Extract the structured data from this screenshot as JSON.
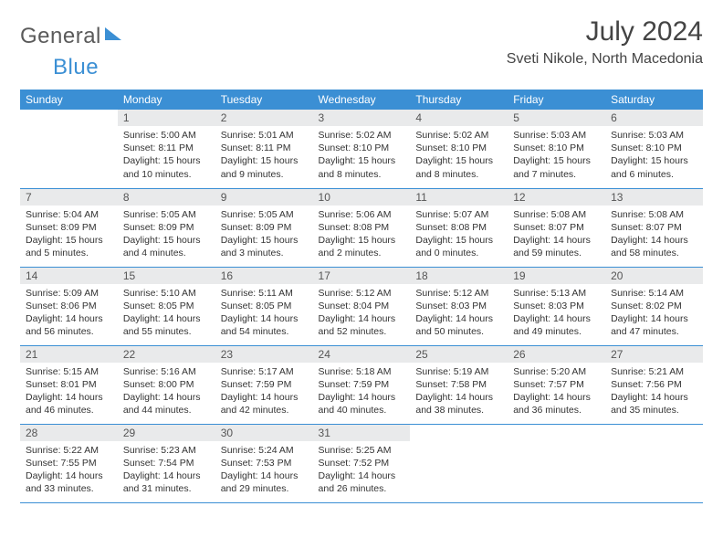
{
  "logo": {
    "text1": "General",
    "text2": "Blue"
  },
  "title": "July 2024",
  "location": "Sveti Nikole, North Macedonia",
  "colors": {
    "header_bg": "#3b8fd4",
    "header_fg": "#ffffff",
    "daynum_bg": "#e9eaeb",
    "rule": "#3b8fd4",
    "text": "#333333",
    "logo_gray": "#5a5a5a",
    "logo_blue": "#3b8fd4",
    "background": "#ffffff"
  },
  "weekdays": [
    "Sunday",
    "Monday",
    "Tuesday",
    "Wednesday",
    "Thursday",
    "Friday",
    "Saturday"
  ],
  "weeks": [
    [
      {
        "n": "",
        "sr": "",
        "ss": "",
        "dl": ""
      },
      {
        "n": "1",
        "sr": "Sunrise: 5:00 AM",
        "ss": "Sunset: 8:11 PM",
        "dl": "Daylight: 15 hours and 10 minutes."
      },
      {
        "n": "2",
        "sr": "Sunrise: 5:01 AM",
        "ss": "Sunset: 8:11 PM",
        "dl": "Daylight: 15 hours and 9 minutes."
      },
      {
        "n": "3",
        "sr": "Sunrise: 5:02 AM",
        "ss": "Sunset: 8:10 PM",
        "dl": "Daylight: 15 hours and 8 minutes."
      },
      {
        "n": "4",
        "sr": "Sunrise: 5:02 AM",
        "ss": "Sunset: 8:10 PM",
        "dl": "Daylight: 15 hours and 8 minutes."
      },
      {
        "n": "5",
        "sr": "Sunrise: 5:03 AM",
        "ss": "Sunset: 8:10 PM",
        "dl": "Daylight: 15 hours and 7 minutes."
      },
      {
        "n": "6",
        "sr": "Sunrise: 5:03 AM",
        "ss": "Sunset: 8:10 PM",
        "dl": "Daylight: 15 hours and 6 minutes."
      }
    ],
    [
      {
        "n": "7",
        "sr": "Sunrise: 5:04 AM",
        "ss": "Sunset: 8:09 PM",
        "dl": "Daylight: 15 hours and 5 minutes."
      },
      {
        "n": "8",
        "sr": "Sunrise: 5:05 AM",
        "ss": "Sunset: 8:09 PM",
        "dl": "Daylight: 15 hours and 4 minutes."
      },
      {
        "n": "9",
        "sr": "Sunrise: 5:05 AM",
        "ss": "Sunset: 8:09 PM",
        "dl": "Daylight: 15 hours and 3 minutes."
      },
      {
        "n": "10",
        "sr": "Sunrise: 5:06 AM",
        "ss": "Sunset: 8:08 PM",
        "dl": "Daylight: 15 hours and 2 minutes."
      },
      {
        "n": "11",
        "sr": "Sunrise: 5:07 AM",
        "ss": "Sunset: 8:08 PM",
        "dl": "Daylight: 15 hours and 0 minutes."
      },
      {
        "n": "12",
        "sr": "Sunrise: 5:08 AM",
        "ss": "Sunset: 8:07 PM",
        "dl": "Daylight: 14 hours and 59 minutes."
      },
      {
        "n": "13",
        "sr": "Sunrise: 5:08 AM",
        "ss": "Sunset: 8:07 PM",
        "dl": "Daylight: 14 hours and 58 minutes."
      }
    ],
    [
      {
        "n": "14",
        "sr": "Sunrise: 5:09 AM",
        "ss": "Sunset: 8:06 PM",
        "dl": "Daylight: 14 hours and 56 minutes."
      },
      {
        "n": "15",
        "sr": "Sunrise: 5:10 AM",
        "ss": "Sunset: 8:05 PM",
        "dl": "Daylight: 14 hours and 55 minutes."
      },
      {
        "n": "16",
        "sr": "Sunrise: 5:11 AM",
        "ss": "Sunset: 8:05 PM",
        "dl": "Daylight: 14 hours and 54 minutes."
      },
      {
        "n": "17",
        "sr": "Sunrise: 5:12 AM",
        "ss": "Sunset: 8:04 PM",
        "dl": "Daylight: 14 hours and 52 minutes."
      },
      {
        "n": "18",
        "sr": "Sunrise: 5:12 AM",
        "ss": "Sunset: 8:03 PM",
        "dl": "Daylight: 14 hours and 50 minutes."
      },
      {
        "n": "19",
        "sr": "Sunrise: 5:13 AM",
        "ss": "Sunset: 8:03 PM",
        "dl": "Daylight: 14 hours and 49 minutes."
      },
      {
        "n": "20",
        "sr": "Sunrise: 5:14 AM",
        "ss": "Sunset: 8:02 PM",
        "dl": "Daylight: 14 hours and 47 minutes."
      }
    ],
    [
      {
        "n": "21",
        "sr": "Sunrise: 5:15 AM",
        "ss": "Sunset: 8:01 PM",
        "dl": "Daylight: 14 hours and 46 minutes."
      },
      {
        "n": "22",
        "sr": "Sunrise: 5:16 AM",
        "ss": "Sunset: 8:00 PM",
        "dl": "Daylight: 14 hours and 44 minutes."
      },
      {
        "n": "23",
        "sr": "Sunrise: 5:17 AM",
        "ss": "Sunset: 7:59 PM",
        "dl": "Daylight: 14 hours and 42 minutes."
      },
      {
        "n": "24",
        "sr": "Sunrise: 5:18 AM",
        "ss": "Sunset: 7:59 PM",
        "dl": "Daylight: 14 hours and 40 minutes."
      },
      {
        "n": "25",
        "sr": "Sunrise: 5:19 AM",
        "ss": "Sunset: 7:58 PM",
        "dl": "Daylight: 14 hours and 38 minutes."
      },
      {
        "n": "26",
        "sr": "Sunrise: 5:20 AM",
        "ss": "Sunset: 7:57 PM",
        "dl": "Daylight: 14 hours and 36 minutes."
      },
      {
        "n": "27",
        "sr": "Sunrise: 5:21 AM",
        "ss": "Sunset: 7:56 PM",
        "dl": "Daylight: 14 hours and 35 minutes."
      }
    ],
    [
      {
        "n": "28",
        "sr": "Sunrise: 5:22 AM",
        "ss": "Sunset: 7:55 PM",
        "dl": "Daylight: 14 hours and 33 minutes."
      },
      {
        "n": "29",
        "sr": "Sunrise: 5:23 AM",
        "ss": "Sunset: 7:54 PM",
        "dl": "Daylight: 14 hours and 31 minutes."
      },
      {
        "n": "30",
        "sr": "Sunrise: 5:24 AM",
        "ss": "Sunset: 7:53 PM",
        "dl": "Daylight: 14 hours and 29 minutes."
      },
      {
        "n": "31",
        "sr": "Sunrise: 5:25 AM",
        "ss": "Sunset: 7:52 PM",
        "dl": "Daylight: 14 hours and 26 minutes."
      },
      {
        "n": "",
        "sr": "",
        "ss": "",
        "dl": ""
      },
      {
        "n": "",
        "sr": "",
        "ss": "",
        "dl": ""
      },
      {
        "n": "",
        "sr": "",
        "ss": "",
        "dl": ""
      }
    ]
  ]
}
